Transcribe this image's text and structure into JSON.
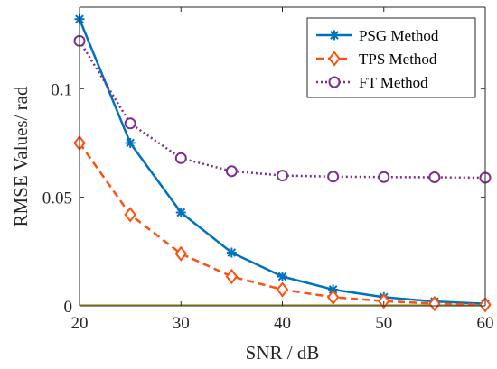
{
  "chart_data": {
    "type": "line",
    "xlabel": "SNR / dB",
    "ylabel": "RMSE Values/ rad",
    "xlim": [
      20,
      60
    ],
    "ylim": [
      0,
      0.1375
    ],
    "x_ticks": [
      "20",
      "30",
      "40",
      "50",
      "60"
    ],
    "y_ticks": [
      "0",
      "0.05",
      "0.1"
    ],
    "x_tick_values": [
      20,
      30,
      40,
      50,
      60
    ],
    "y_tick_values": [
      0,
      0.05,
      0.1
    ],
    "grid": false,
    "legend_position": "top-right",
    "x": [
      20,
      25,
      30,
      35,
      40,
      45,
      50,
      55,
      60
    ],
    "series": [
      {
        "name": "PSG Method",
        "color": "#0072BD",
        "line_style": "solid",
        "marker": "asterisk",
        "values": [
          0.132,
          0.075,
          0.043,
          0.0245,
          0.0135,
          0.0075,
          0.004,
          0.002,
          0.001
        ]
      },
      {
        "name": "TPS Method",
        "color": "#FF4F0F",
        "line_style": "dashed",
        "marker": "diamond",
        "values": [
          0.075,
          0.042,
          0.024,
          0.0135,
          0.0075,
          0.004,
          0.0022,
          0.001,
          0.0005
        ]
      },
      {
        "name": "FT Method",
        "color": "#7E2F8E",
        "line_style": "dotted",
        "marker": "circle",
        "values": [
          0.122,
          0.084,
          0.068,
          0.062,
          0.06,
          0.0595,
          0.0593,
          0.0592,
          0.059
        ]
      }
    ]
  }
}
